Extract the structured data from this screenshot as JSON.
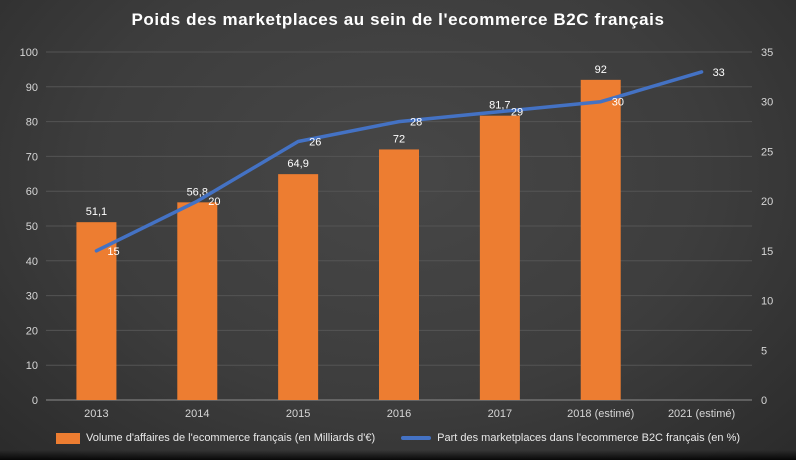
{
  "chart_data": {
    "type": "combo",
    "title": "Poids des marketplaces au sein de l'ecommerce B2C français",
    "categories": [
      "2013",
      "2014",
      "2015",
      "2016",
      "2017",
      "2018 (estimé)",
      "2021 (estimé)"
    ],
    "series": [
      {
        "name": "Volume d'affaires de l'ecommerce français (en Milliards d'€)",
        "type": "bar",
        "axis": "left",
        "color": "#ED7D31",
        "values": [
          51.1,
          56.8,
          64.9,
          72,
          81.7,
          92,
          null
        ],
        "labels": [
          "51,1",
          "56,8",
          "64,9",
          "72",
          "81,7",
          "92",
          ""
        ]
      },
      {
        "name": "Part des marketplaces dans l'ecommerce B2C français (en %)",
        "type": "line",
        "axis": "right",
        "color": "#4472C4",
        "values": [
          15,
          20,
          26,
          28,
          29,
          30,
          33
        ],
        "labels": [
          "15",
          "20",
          "26",
          "28",
          "29",
          "30",
          "33"
        ]
      }
    ],
    "left_axis": {
      "min": 0,
      "max": 100,
      "step": 10
    },
    "right_axis": {
      "min": 0,
      "max": 35,
      "step": 5
    },
    "grid": true,
    "legend_position": "bottom",
    "colors": {
      "background": "#3d3d3d",
      "gridline": "#545454",
      "axis_line": "#8c8c8c",
      "tick_text": "#d6d6d6",
      "data_label": "#ffffff",
      "title_text": "#ffffff"
    }
  }
}
